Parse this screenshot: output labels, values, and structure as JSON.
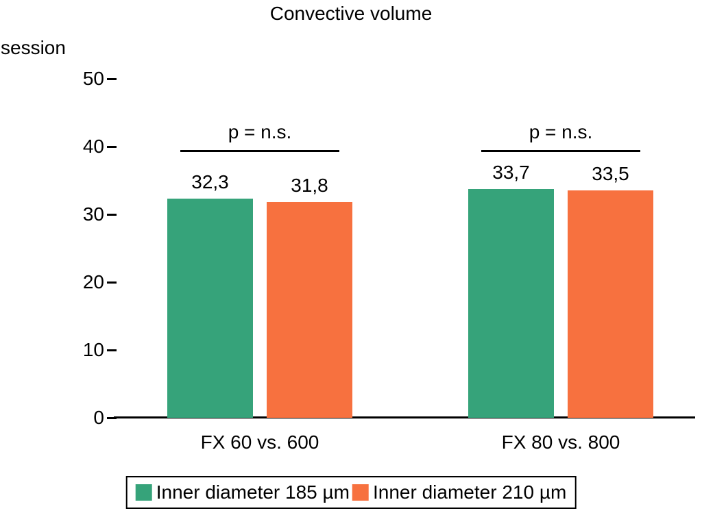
{
  "chart_data": {
    "type": "bar",
    "title": "Convective volume",
    "ylabel": "session",
    "xlabel": "",
    "ylim": [
      0,
      50
    ],
    "yticks": [
      0,
      10,
      20,
      30,
      40,
      50
    ],
    "grid": false,
    "legend_position": "bottom",
    "categories": [
      "FX 60 vs. 600",
      "FX 80 vs. 800"
    ],
    "series": [
      {
        "name": "Inner diameter 185 µm",
        "color": "#36a37a",
        "values": [
          32.3,
          33.7
        ],
        "value_labels": [
          "32,3",
          "33,7"
        ]
      },
      {
        "name": "Inner diameter 210 µm",
        "color": "#f7713f",
        "values": [
          31.8,
          33.5
        ],
        "value_labels": [
          "31,8",
          "33,5"
        ]
      }
    ],
    "annotations": [
      {
        "group": "FX 60 vs. 600",
        "text": "p = n.s."
      },
      {
        "group": "FX 80 vs. 800",
        "text": "p = n.s."
      }
    ]
  }
}
